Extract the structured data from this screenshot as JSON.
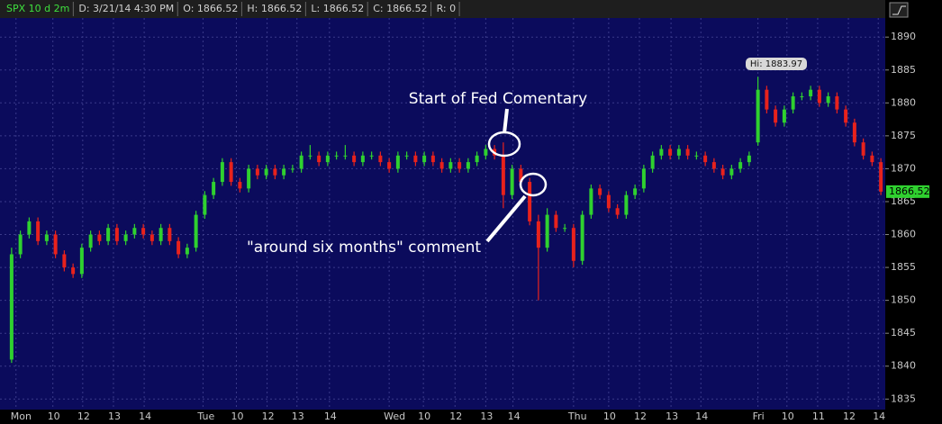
{
  "chart_data": {
    "type": "candlestick",
    "header": [
      "SPX 10 d 2m",
      "D: 3/21/14 4:30 PM",
      "O: 1866.52",
      "H: 1866.52",
      "L: 1866.52",
      "C: 1866.52",
      "R: 0"
    ],
    "annotations": [
      "Start of Fed Comentary",
      "\"around six months\" comment",
      "Hi: 1883.97"
    ],
    "last_price": 1866.52,
    "up_color": "#2fd12f",
    "down_color": "#e8221c",
    "grid": true,
    "xlim": [
      0,
      100
    ],
    "xticks": [
      {
        "value": 1.0,
        "label": "Mon"
      },
      {
        "value": 5.2,
        "label": "10"
      },
      {
        "value": 8.6,
        "label": "12"
      },
      {
        "value": 12.1,
        "label": "13"
      },
      {
        "value": 15.6,
        "label": "14"
      },
      {
        "value": 22.3,
        "label": "Tue"
      },
      {
        "value": 26.1,
        "label": "10"
      },
      {
        "value": 29.6,
        "label": "12"
      },
      {
        "value": 33.0,
        "label": "13"
      },
      {
        "value": 36.7,
        "label": "14"
      },
      {
        "value": 43.5,
        "label": "Wed"
      },
      {
        "value": 47.4,
        "label": "10"
      },
      {
        "value": 51.0,
        "label": "12"
      },
      {
        "value": 54.5,
        "label": "13"
      },
      {
        "value": 57.6,
        "label": "14"
      },
      {
        "value": 64.5,
        "label": "Thu"
      },
      {
        "value": 68.5,
        "label": "10"
      },
      {
        "value": 72.0,
        "label": "12"
      },
      {
        "value": 75.6,
        "label": "13"
      },
      {
        "value": 79.0,
        "label": "14"
      },
      {
        "value": 85.5,
        "label": "Fri"
      },
      {
        "value": 88.8,
        "label": "10"
      },
      {
        "value": 92.3,
        "label": "11"
      },
      {
        "value": 95.8,
        "label": "12"
      },
      {
        "value": 99.2,
        "label": "14"
      }
    ],
    "ylim": [
      1833.4,
      1892.9
    ],
    "yticks": [
      1835,
      1840,
      1845,
      1850,
      1855,
      1860,
      1865,
      1870,
      1875,
      1880,
      1885,
      1890
    ],
    "ohlc": [
      [
        1841,
        1858,
        1840.5,
        1857
      ],
      [
        1857,
        1860.6,
        1856.4,
        1860
      ],
      [
        1860,
        1862.6,
        1859.4,
        1862
      ],
      [
        1862,
        1862.6,
        1858.4,
        1859
      ],
      [
        1859,
        1860.6,
        1858.4,
        1860
      ],
      [
        1860,
        1860.6,
        1856.4,
        1857
      ],
      [
        1857,
        1857.6,
        1854.4,
        1855
      ],
      [
        1855,
        1855.6,
        1853.4,
        1854
      ],
      [
        1854,
        1858.6,
        1853.4,
        1858
      ],
      [
        1858,
        1860.6,
        1857.4,
        1860
      ],
      [
        1860,
        1860.6,
        1858.4,
        1859
      ],
      [
        1859,
        1861.6,
        1858.4,
        1861
      ],
      [
        1861,
        1861.6,
        1858.4,
        1859
      ],
      [
        1859,
        1860.6,
        1858.4,
        1860
      ],
      [
        1860,
        1861.6,
        1859.4,
        1861
      ],
      [
        1861,
        1861.6,
        1859.4,
        1860
      ],
      [
        1860,
        1860.6,
        1858.4,
        1859
      ],
      [
        1859,
        1861.6,
        1858.4,
        1861
      ],
      [
        1861,
        1861.6,
        1858.4,
        1859
      ],
      [
        1859,
        1859.6,
        1856.4,
        1857
      ],
      [
        1857,
        1858.6,
        1856.4,
        1858
      ],
      [
        1858,
        1863.6,
        1857.4,
        1863
      ],
      [
        1863,
        1866.6,
        1862.4,
        1866
      ],
      [
        1866,
        1868.6,
        1865.4,
        1868
      ],
      [
        1868,
        1871.6,
        1867.4,
        1871
      ],
      [
        1871,
        1871.6,
        1867.4,
        1868
      ],
      [
        1868,
        1868.6,
        1866.4,
        1867
      ],
      [
        1867,
        1870.6,
        1866.4,
        1870
      ],
      [
        1870,
        1870.6,
        1868.4,
        1869
      ],
      [
        1869,
        1870.6,
        1868.4,
        1870
      ],
      [
        1870,
        1870.6,
        1868.4,
        1869
      ],
      [
        1869,
        1870.6,
        1868.4,
        1870
      ],
      [
        1870,
        1870.6,
        1869.4,
        1870
      ],
      [
        1870,
        1872.6,
        1869.4,
        1872
      ],
      [
        1872,
        1873.6,
        1871.4,
        1872
      ],
      [
        1872,
        1872.6,
        1870.4,
        1871
      ],
      [
        1871,
        1872.6,
        1870.4,
        1872
      ],
      [
        1872,
        1872.6,
        1871.4,
        1872
      ],
      [
        1872,
        1873.6,
        1871.4,
        1872
      ],
      [
        1872,
        1872.6,
        1870.4,
        1871
      ],
      [
        1871,
        1872.6,
        1870.4,
        1872
      ],
      [
        1872,
        1872.6,
        1871.4,
        1872
      ],
      [
        1872,
        1872.6,
        1870.4,
        1871
      ],
      [
        1871,
        1871.6,
        1869.4,
        1870
      ],
      [
        1870,
        1872.6,
        1869.4,
        1872
      ],
      [
        1872,
        1872.6,
        1871.4,
        1872
      ],
      [
        1872,
        1872.6,
        1870.4,
        1871
      ],
      [
        1871,
        1872.6,
        1870.4,
        1872
      ],
      [
        1872,
        1872.6,
        1870.4,
        1871
      ],
      [
        1871,
        1871.6,
        1869.4,
        1870
      ],
      [
        1870,
        1871.6,
        1869.4,
        1871
      ],
      [
        1871,
        1871.6,
        1869.4,
        1870
      ],
      [
        1870,
        1871.6,
        1869.4,
        1871
      ],
      [
        1871,
        1872.6,
        1870.4,
        1872
      ],
      [
        1872,
        1873.6,
        1871.4,
        1873
      ],
      [
        1873,
        1873.6,
        1871.4,
        1872
      ],
      [
        1872,
        1874,
        1864,
        1866
      ],
      [
        1866,
        1870.6,
        1865.4,
        1870
      ],
      [
        1870,
        1870.6,
        1867.4,
        1868
      ],
      [
        1868,
        1868.6,
        1861.4,
        1862
      ],
      [
        1862,
        1863,
        1850,
        1858
      ],
      [
        1858,
        1864,
        1857.4,
        1863
      ],
      [
        1863,
        1863.6,
        1860.4,
        1861
      ],
      [
        1861,
        1861.6,
        1860.4,
        1861
      ],
      [
        1861,
        1861.6,
        1855,
        1856
      ],
      [
        1856,
        1863.6,
        1855.4,
        1863
      ],
      [
        1863,
        1867.6,
        1862.4,
        1867
      ],
      [
        1867,
        1867.6,
        1865.4,
        1866
      ],
      [
        1866,
        1866.6,
        1863.4,
        1864
      ],
      [
        1864,
        1864.6,
        1862.4,
        1863
      ],
      [
        1863,
        1866.6,
        1862.4,
        1866
      ],
      [
        1866,
        1867.6,
        1865.4,
        1867
      ],
      [
        1867,
        1870.6,
        1866.4,
        1870
      ],
      [
        1870,
        1872.6,
        1869.4,
        1872
      ],
      [
        1872,
        1873.6,
        1871.4,
        1873
      ],
      [
        1873,
        1873.6,
        1871.4,
        1872
      ],
      [
        1872,
        1873.6,
        1871.4,
        1873
      ],
      [
        1873,
        1873.6,
        1871.4,
        1872
      ],
      [
        1872,
        1872.6,
        1871.4,
        1872
      ],
      [
        1872,
        1872.6,
        1870.4,
        1871
      ],
      [
        1871,
        1871.6,
        1869.4,
        1870
      ],
      [
        1870,
        1870.6,
        1868.4,
        1869
      ],
      [
        1869,
        1870.6,
        1868.4,
        1870
      ],
      [
        1870,
        1871.6,
        1869.4,
        1871
      ],
      [
        1871,
        1872.6,
        1870.4,
        1872
      ],
      [
        1874,
        1883.97,
        1873.5,
        1882
      ],
      [
        1882,
        1882.6,
        1878.4,
        1879
      ],
      [
        1879,
        1879.6,
        1876.4,
        1877
      ],
      [
        1877,
        1879.6,
        1876.4,
        1879
      ],
      [
        1879,
        1881.6,
        1878.4,
        1881
      ],
      [
        1881,
        1881.6,
        1880.4,
        1881
      ],
      [
        1881,
        1882.6,
        1880.4,
        1882
      ],
      [
        1882,
        1882.6,
        1879.4,
        1880
      ],
      [
        1880,
        1881.6,
        1879.4,
        1881
      ],
      [
        1881,
        1881.6,
        1878.4,
        1879
      ],
      [
        1879,
        1879.6,
        1876.4,
        1877
      ],
      [
        1877,
        1877.6,
        1873.4,
        1874
      ],
      [
        1874,
        1874.6,
        1871.4,
        1872
      ],
      [
        1872,
        1872.6,
        1870.4,
        1871
      ],
      [
        1871,
        1871.6,
        1866,
        1866.52
      ]
    ]
  }
}
